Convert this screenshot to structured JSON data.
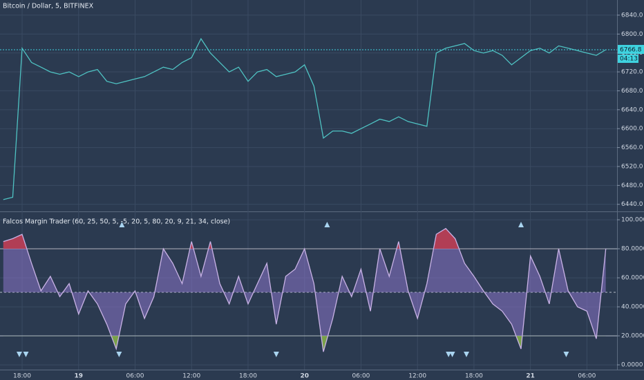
{
  "chart_data": [
    {
      "type": "line",
      "title": "Bitcoin / Dollar, 5, BITFINEX",
      "x": [
        -2,
        -1,
        0,
        1,
        2,
        3,
        4,
        5,
        6,
        7,
        8,
        9,
        10,
        11,
        12,
        13,
        14,
        15,
        16,
        17,
        18,
        19,
        20,
        21,
        22,
        23,
        24,
        25,
        26,
        27,
        28,
        29,
        30,
        31,
        32,
        33,
        34,
        35,
        36,
        37,
        38,
        39,
        40,
        41,
        42,
        43,
        44,
        45,
        46,
        47,
        48,
        49,
        50,
        51,
        52,
        53,
        54,
        55,
        56,
        57,
        58,
        59,
        60,
        61,
        62
      ],
      "series": [
        {
          "name": "Bitcoin / Dollar",
          "color": "#4fc3c3",
          "values": [
            6450,
            6455,
            6770,
            6740,
            6730,
            6720,
            6715,
            6720,
            6710,
            6720,
            6725,
            6700,
            6695,
            6700,
            6705,
            6710,
            6720,
            6730,
            6725,
            6740,
            6750,
            6790,
            6760,
            6740,
            6720,
            6730,
            6700,
            6720,
            6725,
            6710,
            6715,
            6720,
            6735,
            6690,
            6580,
            6595,
            6595,
            6590,
            6600,
            6610,
            6620,
            6615,
            6625,
            6615,
            6610,
            6605,
            6760,
            6770,
            6775,
            6780,
            6765,
            6760,
            6765,
            6755,
            6735,
            6750,
            6765,
            6770,
            6760,
            6775,
            6770,
            6765,
            6760,
            6755,
            6766.8
          ]
        }
      ],
      "xlim": [
        -2.35,
        63.2
      ],
      "ylim": [
        6425,
        6872
      ],
      "yticks": [
        {
          "value": 6440,
          "label": "6440.0"
        },
        {
          "value": 6480,
          "label": "6480.0"
        },
        {
          "value": 6520,
          "label": "6520.0"
        },
        {
          "value": 6560,
          "label": "6560.0"
        },
        {
          "value": 6600,
          "label": "6600.0"
        },
        {
          "value": 6640,
          "label": "6640.0"
        },
        {
          "value": 6680,
          "label": "6680.0"
        },
        {
          "value": 6720,
          "label": "6720.0"
        },
        {
          "value": 6760,
          "label": "6760.0"
        },
        {
          "value": 6800,
          "label": "6800.0"
        },
        {
          "value": 6840,
          "label": "6840.0"
        }
      ],
      "last_price": 6766.8,
      "countdown": "04:13",
      "grid": true
    },
    {
      "type": "line",
      "title": "Falcos Margin Trader (60, 25, 50, 5, -5, 20, 5, 80, 20, 9, 21, 34, close)",
      "x": [
        -2,
        -1,
        0,
        1,
        2,
        3,
        4,
        5,
        6,
        7,
        8,
        9,
        10,
        11,
        12,
        13,
        14,
        15,
        16,
        17,
        18,
        19,
        20,
        21,
        22,
        23,
        24,
        25,
        26,
        27,
        28,
        29,
        30,
        31,
        32,
        33,
        34,
        35,
        36,
        37,
        38,
        39,
        40,
        41,
        42,
        43,
        44,
        45,
        46,
        47,
        48,
        49,
        50,
        51,
        52,
        53,
        54,
        55,
        56,
        57,
        58,
        59,
        60,
        61,
        62
      ],
      "series": [
        {
          "name": "Falcos Margin Trader",
          "color": "#c9b3e6",
          "values": [
            85,
            87,
            90,
            70,
            51,
            61,
            47,
            56,
            35,
            51,
            42,
            28,
            11,
            42,
            51,
            32,
            47,
            80,
            70,
            56,
            85,
            61,
            85,
            56,
            42,
            61,
            42,
            56,
            70,
            28,
            61,
            66,
            80,
            56,
            9,
            32,
            61,
            47,
            66,
            37,
            80,
            61,
            85,
            51,
            32,
            56,
            90,
            94,
            87,
            70,
            61,
            51,
            42,
            37,
            28,
            11,
            75,
            61,
            42,
            80,
            51,
            40,
            37,
            18,
            80
          ]
        }
      ],
      "up_arrows": [
        10.6,
        32.4,
        53
      ],
      "down_arrows": [
        -0.3,
        0.4,
        10.3,
        27,
        45.3,
        45.7,
        47.2,
        57.8
      ],
      "levels": [
        {
          "value": 80,
          "style": "solid"
        },
        {
          "value": 50,
          "style": "dashed"
        },
        {
          "value": 20,
          "style": "solid"
        }
      ],
      "xlim": [
        -2.35,
        63.2
      ],
      "ylim": [
        -3.3,
        104.8
      ],
      "xticks": [
        {
          "value": 0,
          "label": "18:00"
        },
        {
          "value": 6,
          "label": "19"
        },
        {
          "value": 12,
          "label": "06:00"
        },
        {
          "value": 18,
          "label": "12:00"
        },
        {
          "value": 24,
          "label": "18:00"
        },
        {
          "value": 30,
          "label": "20"
        },
        {
          "value": 36,
          "label": "06:00"
        },
        {
          "value": 42,
          "label": "12:00"
        },
        {
          "value": 48,
          "label": "18:00"
        },
        {
          "value": 54,
          "label": "21"
        },
        {
          "value": 60,
          "label": "06:00"
        }
      ],
      "yticks": [
        {
          "value": 0,
          "label": "0.0000"
        },
        {
          "value": 20,
          "label": "20.0000"
        },
        {
          "value": 40,
          "label": "40.0000"
        },
        {
          "value": 60,
          "label": "60.0000"
        },
        {
          "value": 80,
          "label": "80.0000"
        },
        {
          "value": 100,
          "label": "100.0000"
        }
      ],
      "grid": true
    }
  ]
}
